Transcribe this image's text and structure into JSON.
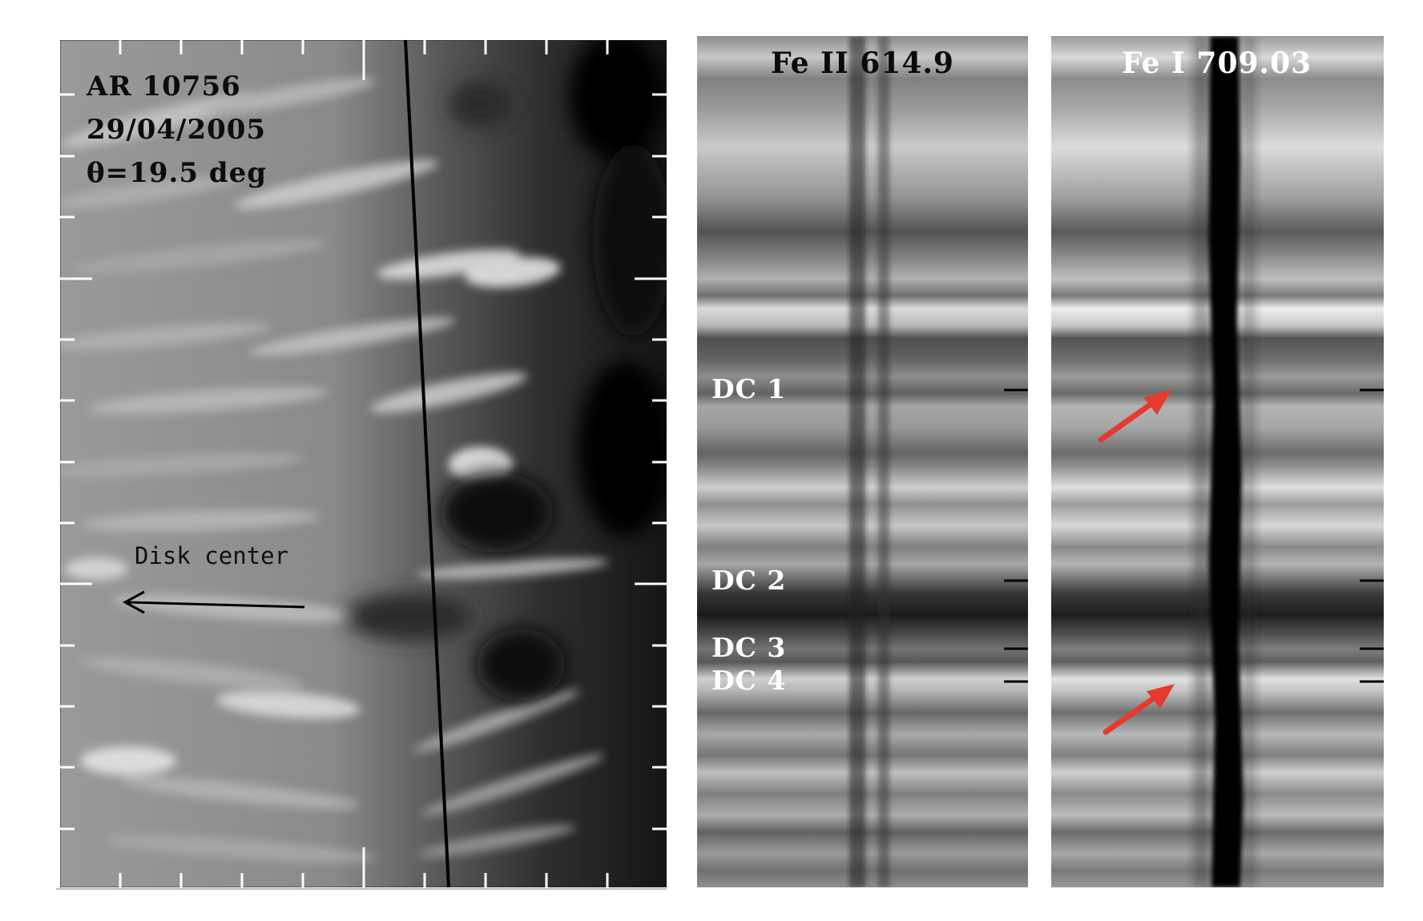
{
  "left_panel": {
    "region": "AR 10756",
    "date": "29/04/2005",
    "angle": "θ=19.5 deg",
    "arrow_label": "Disk center"
  },
  "middle_panel": {
    "title": "Fe II 614.9",
    "markers": [
      "DC 1",
      "DC 2",
      "DC 3",
      "DC 4"
    ]
  },
  "right_panel": {
    "title": "Fe I 709.03",
    "arrow_color": "#e63a2e"
  },
  "colors": {
    "background": "#ffffff",
    "arrow_red": "#e63a2e",
    "line_black": "#000000"
  }
}
